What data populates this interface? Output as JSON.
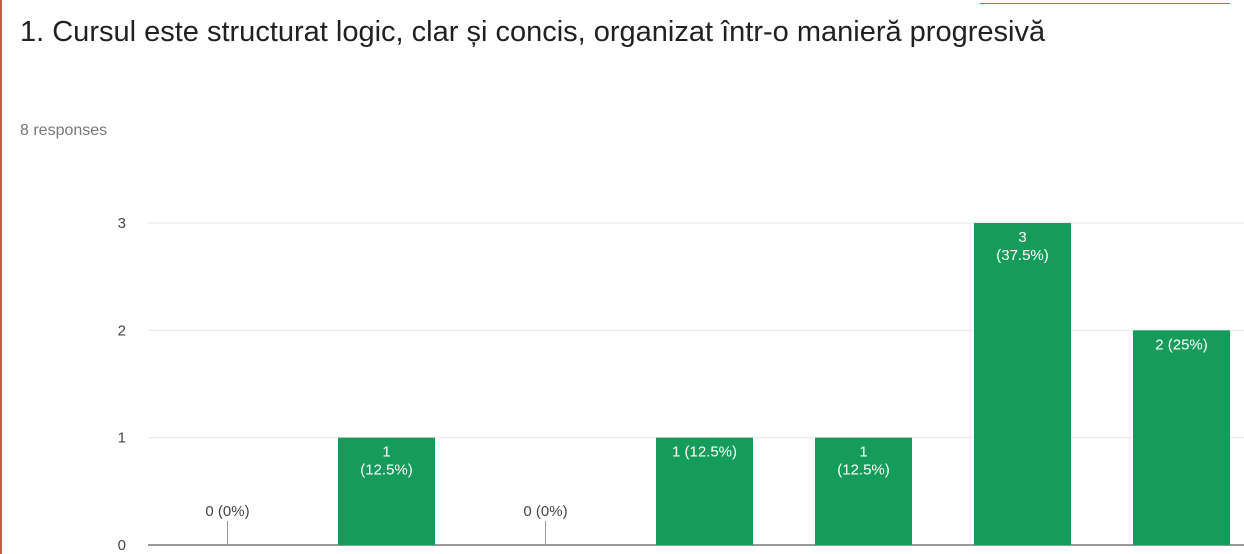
{
  "chart_data": {
    "type": "bar",
    "title": "1. Cursul este structurat logic, clar și concis, organizat într-o manieră progresivă",
    "subtitle": "8 responses",
    "categories": [
      null,
      null,
      null,
      null,
      null,
      null,
      null
    ],
    "values": [
      0,
      1,
      0,
      1,
      1,
      3,
      2
    ],
    "value_labels": [
      "0 (0%)",
      "1\n(12.5%)",
      "0 (0%)",
      "1 (12.5%)",
      "1\n(12.5%)",
      "3\n(37.5%)",
      "2 (25%)"
    ],
    "color": "#169c5a",
    "ylim": [
      0,
      3
    ],
    "yticks": [
      0,
      1,
      2,
      3
    ],
    "grid": true
  }
}
